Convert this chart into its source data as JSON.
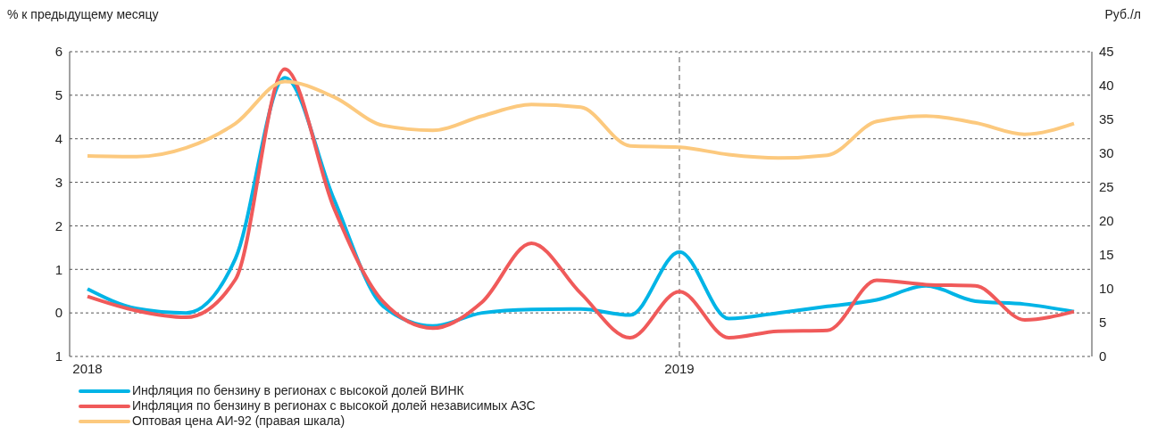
{
  "chart_data": {
    "type": "line",
    "ylabel": "% к предыдущему месяцу",
    "y2label": "Руб./л",
    "categories": [
      "2018",
      null,
      null,
      null,
      null,
      null,
      null,
      null,
      null,
      null,
      null,
      null,
      "2019",
      null,
      null,
      null,
      null,
      null,
      null,
      null,
      null
    ],
    "series": [
      {
        "name": "Инфляция по бензину в регионах с высокой долей ВИНК",
        "color": "#00b4e6",
        "values": [
          0.55,
          0.1,
          0,
          1.25,
          5.4,
          2.6,
          0.15,
          -0.3,
          0,
          0.08,
          0.09,
          -0.05,
          1.4,
          -0.13,
          0,
          0.15,
          0.3,
          0.62,
          0.27,
          0.2,
          0.03
        ]
      },
      {
        "name": "Инфляция по бензину в регионах с высокой долей независимых АЗС",
        "color": "#f05a5a",
        "values": [
          0.38,
          0.05,
          -0.1,
          0.77,
          5.6,
          2.4,
          0.25,
          -0.35,
          0.25,
          1.6,
          0.45,
          -0.57,
          0.49,
          -0.57,
          -0.42,
          -0.4,
          0.75,
          0.65,
          0.62,
          -0.16,
          0.03
        ]
      },
      {
        "name": "Оптовая цена АИ-92 (правая шкала)",
        "color": "#fcc97e",
        "axis": "y2",
        "values": [
          29.6,
          29.5,
          30.8,
          34.4,
          40.6,
          38.3,
          34.1,
          33.4,
          35.5,
          37.2,
          36.8,
          31.1,
          30.9,
          29.8,
          29.3,
          29.7,
          34.7,
          35.5,
          34.5,
          32.8,
          34.4
        ]
      }
    ],
    "ylim": [
      -1,
      6
    ],
    "yticks": [
      {
        "value": -1,
        "label": "1"
      },
      0,
      1,
      2,
      3,
      4,
      5,
      6
    ],
    "y2lim": [
      0,
      45
    ],
    "y2ticks": [
      0,
      5,
      10,
      15,
      20,
      25,
      30,
      35,
      40,
      45
    ],
    "ref_lines": [
      {
        "axis": "x",
        "value": "2019",
        "line_style": "dashed",
        "color": "#555555"
      }
    ],
    "grid": "y",
    "legend": "bottom",
    "marker": "none",
    "line_style": "solid"
  }
}
